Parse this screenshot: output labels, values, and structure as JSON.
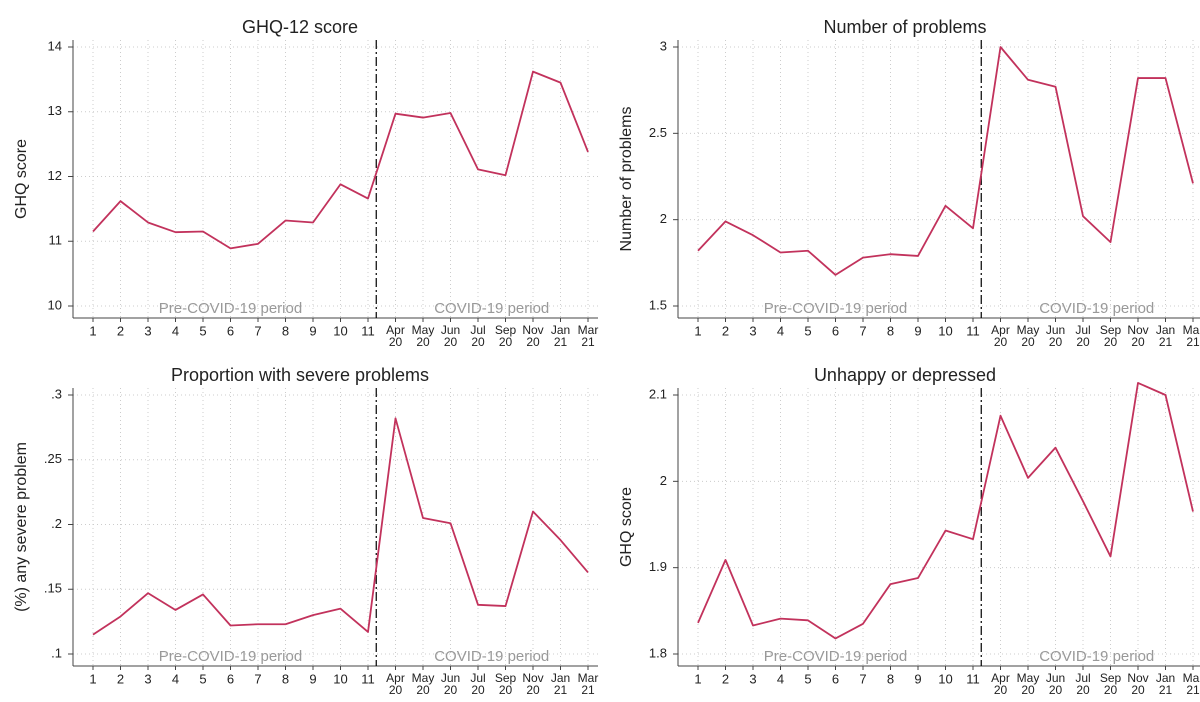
{
  "chart_data": [
    {
      "type": "line",
      "title": "GHQ-12 score",
      "y_label": "GHQ score",
      "color": "#c2325c",
      "grid": true,
      "categories": [
        "1",
        "2",
        "3",
        "4",
        "5",
        "6",
        "7",
        "8",
        "9",
        "10",
        "11",
        [
          "Apr",
          "20"
        ],
        [
          "May",
          "20"
        ],
        [
          "Jun",
          "20"
        ],
        [
          "Jul",
          "20"
        ],
        [
          "Sep",
          "20"
        ],
        [
          "Nov",
          "20"
        ],
        [
          "Jan",
          "21"
        ],
        [
          "Mar",
          "21"
        ]
      ],
      "values": [
        11.15,
        11.62,
        11.29,
        11.14,
        11.15,
        10.89,
        10.96,
        11.32,
        11.29,
        11.88,
        11.66,
        12.97,
        12.91,
        12.98,
        12.11,
        12.02,
        13.62,
        13.45,
        12.38
      ],
      "ylim": [
        10,
        14
      ],
      "yticks": [
        10,
        11,
        12,
        13,
        14
      ],
      "annotations": [
        "Pre-COVID-19 period",
        "COVID-19 period"
      ]
    },
    {
      "type": "line",
      "title": "Number of problems",
      "y_label": "Number of problems",
      "color": "#c2325c",
      "grid": true,
      "categories": [
        "1",
        "2",
        "3",
        "4",
        "5",
        "6",
        "7",
        "8",
        "9",
        "10",
        "11",
        [
          "Apr",
          "20"
        ],
        [
          "May",
          "20"
        ],
        [
          "Jun",
          "20"
        ],
        [
          "Jul",
          "20"
        ],
        [
          "Sep",
          "20"
        ],
        [
          "Nov",
          "20"
        ],
        [
          "Jan",
          "21"
        ],
        [
          "Mar",
          "21"
        ]
      ],
      "values": [
        1.82,
        1.99,
        1.91,
        1.81,
        1.82,
        1.68,
        1.78,
        1.8,
        1.79,
        2.08,
        1.95,
        3.0,
        2.81,
        2.77,
        2.02,
        1.87,
        2.82,
        2.82,
        2.21
      ],
      "ylim": [
        1.5,
        3
      ],
      "yticks": [
        1.5,
        2,
        2.5,
        3
      ],
      "annotations": [
        "Pre-COVID-19 period",
        "COVID-19 period"
      ]
    },
    {
      "type": "line",
      "title": "Proportion with severe problems",
      "y_label": "(%) any severe problem",
      "color": "#c2325c",
      "grid": true,
      "categories": [
        "1",
        "2",
        "3",
        "4",
        "5",
        "6",
        "7",
        "8",
        "9",
        "10",
        "11",
        [
          "Apr",
          "20"
        ],
        [
          "May",
          "20"
        ],
        [
          "Jun",
          "20"
        ],
        [
          "Jul",
          "20"
        ],
        [
          "Sep",
          "20"
        ],
        [
          "Nov",
          "20"
        ],
        [
          "Jan",
          "21"
        ],
        [
          "Mar",
          "21"
        ]
      ],
      "values": [
        0.115,
        0.129,
        0.147,
        0.134,
        0.146,
        0.122,
        0.123,
        0.123,
        0.13,
        0.135,
        0.117,
        0.282,
        0.205,
        0.201,
        0.138,
        0.137,
        0.21,
        0.188,
        0.163
      ],
      "ylim": [
        0.1,
        0.3
      ],
      "yticks": [
        {
          "value": 0.1,
          "label": ".1"
        },
        {
          "value": 0.15,
          "label": ".15"
        },
        {
          "value": 0.2,
          "label": ".2"
        },
        {
          "value": 0.25,
          "label": ".25"
        },
        {
          "value": 0.3,
          "label": ".3"
        }
      ],
      "annotations": [
        "Pre-COVID-19 period",
        "COVID-19 period"
      ]
    },
    {
      "type": "line",
      "title": "Unhappy or depressed",
      "y_label": "GHQ score",
      "color": "#c2325c",
      "grid": true,
      "categories": [
        "1",
        "2",
        "3",
        "4",
        "5",
        "6",
        "7",
        "8",
        "9",
        "10",
        "11",
        [
          "Apr",
          "20"
        ],
        [
          "May",
          "20"
        ],
        [
          "Jun",
          "20"
        ],
        [
          "Jul",
          "20"
        ],
        [
          "Sep",
          "20"
        ],
        [
          "Nov",
          "20"
        ],
        [
          "Jan",
          "21"
        ],
        [
          "Mar",
          "21"
        ]
      ],
      "values": [
        1.836,
        1.909,
        1.833,
        1.841,
        1.839,
        1.818,
        1.835,
        1.881,
        1.888,
        1.943,
        1.933,
        2.076,
        2.004,
        2.039,
        1.977,
        1.913,
        2.114,
        2.1,
        1.965
      ],
      "ylim": [
        1.8,
        2.1
      ],
      "yticks": [
        1.8,
        1.9,
        2,
        2.1
      ],
      "annotations": [
        "Pre-COVID-19 period",
        "COVID-19 period"
      ]
    }
  ]
}
